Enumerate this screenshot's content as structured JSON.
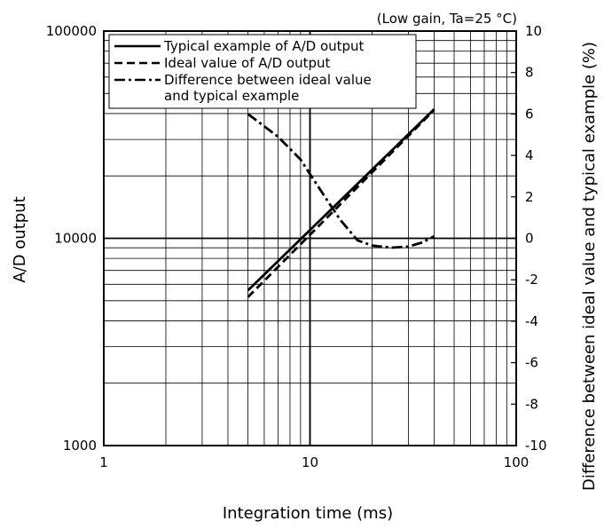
{
  "chart_data": {
    "type": "line",
    "title": "",
    "note": "(Low gain, Ta=25 °C)",
    "xlabel": "Integration time (ms)",
    "ylabel": "A/D output",
    "y2label": "Difference between ideal value and typical example (%)",
    "xscale": "log",
    "yscale": "log",
    "xlim": [
      1,
      100
    ],
    "ylim": [
      1000,
      100000
    ],
    "y2lim": [
      -10,
      10
    ],
    "x_ticks": [
      "1",
      "10",
      "100"
    ],
    "y_ticks": [
      "1000",
      "10000",
      "100000"
    ],
    "y2_ticks": [
      "-10",
      "-8",
      "-6",
      "-4",
      "-2",
      "0",
      "2",
      "4",
      "6",
      "8",
      "10"
    ],
    "grid": true,
    "legend_position": "top-left",
    "series": [
      {
        "name": "Typical example of A/D output",
        "axis": "left",
        "style": "solid",
        "x": [
          5,
          40
        ],
        "y": [
          5600,
          42000
        ]
      },
      {
        "name": "Ideal value of A/D output",
        "axis": "left",
        "style": "dashed",
        "x": [
          5,
          40
        ],
        "y": [
          5200,
          41600
        ]
      },
      {
        "name": "Difference between ideal value and typical example",
        "axis": "right",
        "style": "dash-dot",
        "x": [
          5,
          7,
          9,
          10,
          12,
          14,
          17,
          20,
          22,
          25,
          30,
          35,
          40
        ],
        "y": [
          6.0,
          4.9,
          3.8,
          3.1,
          1.9,
          0.9,
          -0.1,
          -0.35,
          -0.4,
          -0.45,
          -0.4,
          -0.2,
          0.1
        ]
      }
    ]
  }
}
